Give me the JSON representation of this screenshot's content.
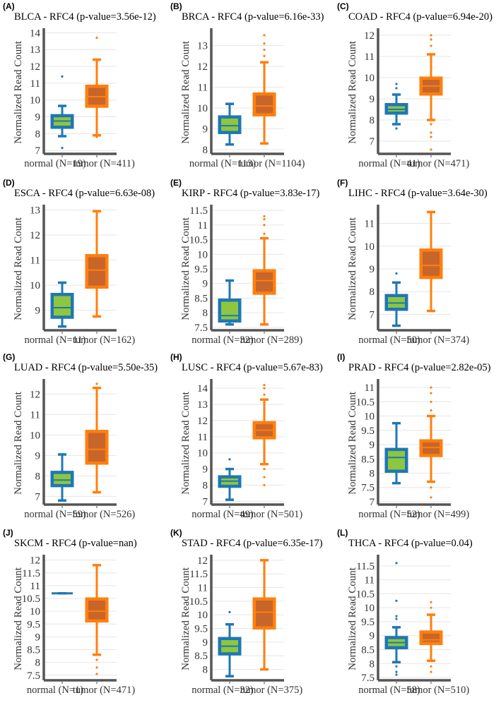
{
  "chart_data": [
    {
      "type": "box",
      "label": "(A)",
      "title": "BLCA - RFC4 (p-value=3.56e-12)",
      "ylabel": "Normalized Read Count",
      "ylim": [
        6.8,
        14.1
      ],
      "yticks": [
        7,
        8,
        9,
        10,
        11,
        12,
        13,
        14
      ],
      "categories": [
        "normal (N=19)",
        "tumor (N=411)"
      ],
      "boxes": [
        {
          "whislo": 7.85,
          "q1": 8.35,
          "med": 8.75,
          "q3": 9.1,
          "whishi": 9.65,
          "fliers": [
            11.4,
            7.15
          ]
        },
        {
          "whislo": 7.9,
          "q1": 9.6,
          "med": 10.2,
          "q3": 10.85,
          "whishi": 12.4,
          "fliers": [
            13.7,
            7.8
          ]
        }
      ]
    },
    {
      "type": "box",
      "label": "(B)",
      "title": "BRCA - RFC4 (p-value=6.16e-33)",
      "ylabel": "Normalized Read Count",
      "ylim": [
        7.8,
        13.7
      ],
      "yticks": [
        8,
        9,
        10,
        11,
        12,
        13
      ],
      "categories": [
        "normal (N=113)",
        "tumor (N=1104)"
      ],
      "boxes": [
        {
          "whislo": 8.25,
          "q1": 8.8,
          "med": 9.15,
          "q3": 9.6,
          "whishi": 10.2,
          "fliers": []
        },
        {
          "whislo": 8.3,
          "q1": 9.65,
          "med": 10.1,
          "q3": 10.7,
          "whishi": 12.2,
          "fliers": [
            12.5,
            12.8,
            13.1,
            13.5
          ]
        }
      ]
    },
    {
      "type": "box",
      "label": "(C)",
      "title": "COAD - RFC4 (p-value=6.94e-20)",
      "ylabel": "Normalized Read Count",
      "ylim": [
        6.4,
        12.2
      ],
      "yticks": [
        7,
        8,
        9,
        10,
        11,
        12
      ],
      "categories": [
        "normal (N=41)",
        "tumor (N=471)"
      ],
      "boxes": [
        {
          "whislo": 7.8,
          "q1": 8.3,
          "med": 8.5,
          "q3": 8.75,
          "whishi": 9.2,
          "fliers": [
            9.5,
            9.7,
            7.6
          ]
        },
        {
          "whislo": 8.0,
          "q1": 9.2,
          "med": 9.6,
          "q3": 10.0,
          "whishi": 11.1,
          "fliers": [
            11.5,
            11.8,
            12.0,
            7.8,
            7.4,
            7.2,
            6.6
          ]
        }
      ]
    },
    {
      "type": "box",
      "label": "(D)",
      "title": "ESCA - RFC4 (p-value=6.63e-08)",
      "ylabel": "Normalized Read Count",
      "ylim": [
        8.2,
        13.1
      ],
      "yticks": [
        9,
        10,
        11,
        12,
        13
      ],
      "categories": [
        "normal (N=11)",
        "tumor (N=162)"
      ],
      "boxes": [
        {
          "whislo": 8.35,
          "q1": 8.7,
          "med": 9.1,
          "q3": 9.65,
          "whishi": 10.1,
          "fliers": []
        },
        {
          "whislo": 8.75,
          "q1": 9.9,
          "med": 10.6,
          "q3": 11.2,
          "whishi": 12.95,
          "fliers": []
        }
      ]
    },
    {
      "type": "box",
      "label": "(E)",
      "title": "KIRP - RFC4 (p-value=3.83e-17)",
      "ylabel": "Normalized Read Count",
      "ylim": [
        7.4,
        11.6
      ],
      "yticks": [
        7.5,
        8,
        8.5,
        9,
        9.5,
        10,
        10.5,
        11,
        11.5
      ],
      "categories": [
        "normal (N=32)",
        "tumor (N=289)"
      ],
      "boxes": [
        {
          "whislo": 7.6,
          "q1": 7.7,
          "med": 7.9,
          "q3": 8.45,
          "whishi": 9.1,
          "fliers": []
        },
        {
          "whislo": 7.6,
          "q1": 8.65,
          "med": 9.1,
          "q3": 9.45,
          "whishi": 10.55,
          "fliers": [
            10.7,
            11.0,
            11.2,
            11.3
          ]
        }
      ]
    },
    {
      "type": "box",
      "label": "(F)",
      "title": "LIHC - RFC4 (p-value=3.64e-30)",
      "ylabel": "Normalized Read Count",
      "ylim": [
        6.3,
        11.7
      ],
      "yticks": [
        7,
        8,
        9,
        10,
        11
      ],
      "categories": [
        "normal (N=50)",
        "tumor (N=374)"
      ],
      "boxes": [
        {
          "whislo": 6.5,
          "q1": 7.2,
          "med": 7.5,
          "q3": 7.85,
          "whishi": 8.4,
          "fliers": [
            8.8
          ]
        },
        {
          "whislo": 7.15,
          "q1": 8.6,
          "med": 9.15,
          "q3": 9.85,
          "whishi": 11.5,
          "fliers": []
        }
      ]
    },
    {
      "type": "box",
      "label": "(G)",
      "title": "LUAD - RFC4 (p-value=5.50e-35)",
      "ylabel": "Normalized Read Count",
      "ylim": [
        6.6,
        12.6
      ],
      "yticks": [
        7,
        8,
        9,
        10,
        11,
        12
      ],
      "categories": [
        "normal (N=59)",
        "tumor (N=526)"
      ],
      "boxes": [
        {
          "whislo": 6.8,
          "q1": 7.5,
          "med": 7.8,
          "q3": 8.2,
          "whishi": 9.05,
          "fliers": []
        },
        {
          "whislo": 7.2,
          "q1": 8.6,
          "med": 9.3,
          "q3": 10.2,
          "whishi": 12.3,
          "fliers": [
            12.5
          ]
        }
      ]
    },
    {
      "type": "box",
      "label": "(H)",
      "title": "LUSC - RFC4 (p-value=5.67e-83)",
      "ylabel": "Normalized Read Count",
      "ylim": [
        6.8,
        14.4
      ],
      "yticks": [
        7,
        8,
        9,
        10,
        11,
        12,
        13,
        14
      ],
      "categories": [
        "normal (N=49)",
        "tumor (N=501)"
      ],
      "boxes": [
        {
          "whislo": 7.1,
          "q1": 7.9,
          "med": 8.25,
          "q3": 8.55,
          "whishi": 9.0,
          "fliers": [
            9.6
          ]
        },
        {
          "whislo": 9.3,
          "q1": 10.9,
          "med": 11.4,
          "q3": 11.9,
          "whishi": 13.3,
          "fliers": [
            13.6,
            14.0,
            14.2,
            9.0,
            8.5,
            8.0
          ]
        }
      ]
    },
    {
      "type": "box",
      "label": "(I)",
      "title": "PRAD - RFC4 (p-value=2.82e-05)",
      "ylabel": "Normalized Read Count",
      "ylim": [
        6.9,
        11.2
      ],
      "yticks": [
        7,
        7.5,
        8,
        8.5,
        9,
        9.5,
        10,
        10.5,
        11
      ],
      "categories": [
        "normal (N=52)",
        "tumor (N=499)"
      ],
      "boxes": [
        {
          "whislo": 7.65,
          "q1": 8.05,
          "med": 8.55,
          "q3": 8.85,
          "whishi": 9.75,
          "fliers": []
        },
        {
          "whislo": 7.7,
          "q1": 8.6,
          "med": 8.9,
          "q3": 9.15,
          "whishi": 10.0,
          "fliers": [
            10.2,
            10.5,
            10.8,
            11.0,
            7.5,
            7.15
          ]
        }
      ]
    },
    {
      "type": "box",
      "label": "(J)",
      "title": "SKCM - RFC4 (p-value=nan)",
      "ylabel": "Normalized Read Count",
      "ylim": [
        7.3,
        12.1
      ],
      "yticks": [
        7.5,
        8,
        8.5,
        9,
        9.5,
        10,
        10.5,
        11,
        11.5,
        12
      ],
      "categories": [
        "normal (N=1)",
        "tumor (N=471)"
      ],
      "boxes": [
        {
          "whislo": 10.7,
          "q1": 10.7,
          "med": 10.7,
          "q3": 10.7,
          "whishi": 10.7,
          "fliers": []
        },
        {
          "whislo": 8.3,
          "q1": 9.6,
          "med": 10.0,
          "q3": 10.5,
          "whishi": 11.8,
          "fliers": [
            8.1,
            7.8,
            7.55
          ]
        }
      ]
    },
    {
      "type": "box",
      "label": "(K)",
      "title": "STAD - RFC4 (p-value=6.35e-17)",
      "ylabel": "Normalized Read Count",
      "ylim": [
        7.6,
        12.1
      ],
      "yticks": [
        8,
        8.5,
        9,
        9.5,
        10,
        10.5,
        11,
        11.5,
        12
      ],
      "categories": [
        "normal (N=32)",
        "tumor (N=375)"
      ],
      "boxes": [
        {
          "whislo": 7.75,
          "q1": 8.55,
          "med": 8.85,
          "q3": 9.15,
          "whishi": 9.65,
          "fliers": [
            10.1
          ]
        },
        {
          "whislo": 8.0,
          "q1": 9.5,
          "med": 10.1,
          "q3": 10.6,
          "whishi": 12.0,
          "fliers": []
        }
      ]
    },
    {
      "type": "box",
      "label": "(L)",
      "title": "THCA - RFC4 (p-value=0.04)",
      "ylabel": "Normalized Read Count",
      "ylim": [
        7.4,
        11.8
      ],
      "yticks": [
        7.5,
        8,
        8.5,
        9,
        9.5,
        10,
        10.5,
        11,
        11.5
      ],
      "categories": [
        "normal (N=58)",
        "tumor (N=510)"
      ],
      "boxes": [
        {
          "whislo": 8.05,
          "q1": 8.55,
          "med": 8.75,
          "q3": 8.95,
          "whishi": 9.3,
          "fliers": [
            9.6,
            9.7,
            10.25,
            11.6,
            7.9,
            7.7,
            7.6
          ]
        },
        {
          "whislo": 8.1,
          "q1": 8.7,
          "med": 8.85,
          "q3": 9.15,
          "whishi": 9.75,
          "fliers": [
            10.0,
            10.2,
            7.9,
            7.7
          ]
        }
      ]
    }
  ],
  "colors": {
    "normal_edge": "#1f77b4",
    "normal_fill": "#8dc63f",
    "tumor_edge": "#ff7f0e",
    "tumor_fill": "#c8652a",
    "axis": "#555555",
    "grid": "#e6e6e6"
  }
}
